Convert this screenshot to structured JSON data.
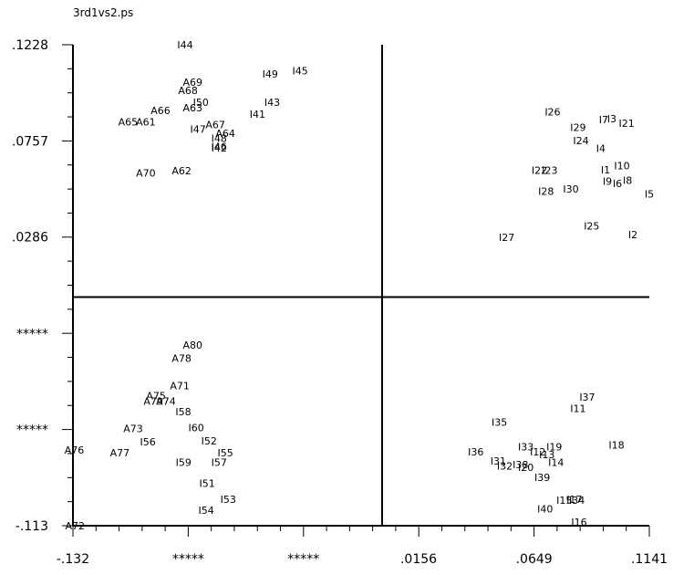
{
  "window": {
    "title": "3rd1vs2.ps"
  },
  "colors": {
    "axis": "#000000",
    "background": "#ffffff",
    "text": "#000000"
  },
  "chart_data": {
    "type": "scatter",
    "title": "3rd1vs2.ps",
    "xlabel": "",
    "ylabel": "",
    "xlim": [
      -0.132,
      0.1141
    ],
    "ylim": [
      -0.113,
      0.1228
    ],
    "grid": false,
    "x_axis_cross": 0.0,
    "y_axis_cross": -0.0009,
    "x_tick_labels": [
      {
        "value": -0.132,
        "label": "-.132"
      },
      {
        "value": -0.0828,
        "label": "*****"
      },
      {
        "value": -0.0336,
        "label": "*****"
      },
      {
        "value": 0.0156,
        "label": ".0156"
      },
      {
        "value": 0.0649,
        "label": ".0649"
      },
      {
        "value": 0.1141,
        "label": ".1141"
      }
    ],
    "y_tick_labels": [
      {
        "value": 0.1228,
        "label": ".1228"
      },
      {
        "value": 0.0757,
        "label": ".0757"
      },
      {
        "value": 0.0286,
        "label": ".0286"
      },
      {
        "value": -0.0188,
        "label": "*****"
      },
      {
        "value": -0.0659,
        "label": "*****"
      },
      {
        "value": -0.113,
        "label": "-.113"
      }
    ],
    "points": [
      {
        "label": "I44",
        "x": -0.0841,
        "y": 0.1228
      },
      {
        "label": "I45",
        "x": -0.035,
        "y": 0.11
      },
      {
        "label": "I49",
        "x": -0.0478,
        "y": 0.1085
      },
      {
        "label": "A69",
        "x": -0.0809,
        "y": 0.1045
      },
      {
        "label": "A68",
        "x": -0.0829,
        "y": 0.1005
      },
      {
        "label": "I50",
        "x": -0.0774,
        "y": 0.0945
      },
      {
        "label": "I43",
        "x": -0.0469,
        "y": 0.0945
      },
      {
        "label": "A66",
        "x": -0.0946,
        "y": 0.0905
      },
      {
        "label": "A63",
        "x": -0.0809,
        "y": 0.092
      },
      {
        "label": "I41",
        "x": -0.0532,
        "y": 0.0888
      },
      {
        "label": "A65",
        "x": -0.1085,
        "y": 0.085
      },
      {
        "label": "A61",
        "x": -0.1009,
        "y": 0.085
      },
      {
        "label": "A67",
        "x": -0.0712,
        "y": 0.0837
      },
      {
        "label": "I47",
        "x": -0.0786,
        "y": 0.0815
      },
      {
        "label": "A64",
        "x": -0.0669,
        "y": 0.0795
      },
      {
        "label": "I48",
        "x": -0.0696,
        "y": 0.077
      },
      {
        "label": "I46",
        "x": -0.0696,
        "y": 0.0728
      },
      {
        "label": "I42",
        "x": -0.0696,
        "y": 0.0723
      },
      {
        "label": "A70",
        "x": -0.1009,
        "y": 0.06
      },
      {
        "label": "A62",
        "x": -0.0856,
        "y": 0.061
      },
      {
        "label": "I26",
        "x": 0.0728,
        "y": 0.09
      },
      {
        "label": "I7",
        "x": 0.0946,
        "y": 0.086
      },
      {
        "label": "I3",
        "x": 0.0981,
        "y": 0.0865
      },
      {
        "label": "I21",
        "x": 0.1044,
        "y": 0.0843
      },
      {
        "label": "I29",
        "x": 0.0837,
        "y": 0.0823
      },
      {
        "label": "I24",
        "x": 0.0849,
        "y": 0.0758
      },
      {
        "label": "I4",
        "x": 0.0934,
        "y": 0.072
      },
      {
        "label": "I22",
        "x": 0.0672,
        "y": 0.0613
      },
      {
        "label": "I23",
        "x": 0.0716,
        "y": 0.0613
      },
      {
        "label": "I1",
        "x": 0.0954,
        "y": 0.0615
      },
      {
        "label": "I10",
        "x": 0.1024,
        "y": 0.0635
      },
      {
        "label": "I9",
        "x": 0.0962,
        "y": 0.056
      },
      {
        "label": "I6",
        "x": 0.1005,
        "y": 0.0548
      },
      {
        "label": "I8",
        "x": 0.1048,
        "y": 0.0563
      },
      {
        "label": "I30",
        "x": 0.0806,
        "y": 0.052
      },
      {
        "label": "I28",
        "x": 0.07,
        "y": 0.051
      },
      {
        "label": "I5",
        "x": 0.1141,
        "y": 0.0497
      },
      {
        "label": "I25",
        "x": 0.0895,
        "y": 0.034
      },
      {
        "label": "I27",
        "x": 0.0532,
        "y": 0.0283
      },
      {
        "label": "I2",
        "x": 0.1071,
        "y": 0.0297
      },
      {
        "label": "A80",
        "x": -0.0809,
        "y": -0.0243
      },
      {
        "label": "A78",
        "x": -0.0856,
        "y": -0.031
      },
      {
        "label": "A71",
        "x": -0.0864,
        "y": -0.0443
      },
      {
        "label": "A75",
        "x": -0.0965,
        "y": -0.0493
      },
      {
        "label": "A79",
        "x": -0.0977,
        "y": -0.052
      },
      {
        "label": "A74",
        "x": -0.0923,
        "y": -0.052
      },
      {
        "label": "I58",
        "x": -0.0849,
        "y": -0.057
      },
      {
        "label": "A73",
        "x": -0.1063,
        "y": -0.0653
      },
      {
        "label": "I60",
        "x": -0.0794,
        "y": -0.065
      },
      {
        "label": "I56",
        "x": -0.1,
        "y": -0.0718
      },
      {
        "label": "I52",
        "x": -0.0739,
        "y": -0.0713
      },
      {
        "label": "A76",
        "x": -0.1314,
        "y": -0.0758
      },
      {
        "label": "A77",
        "x": -0.112,
        "y": -0.0773
      },
      {
        "label": "I55",
        "x": -0.0669,
        "y": -0.0773
      },
      {
        "label": "I59",
        "x": -0.0848,
        "y": -0.0818
      },
      {
        "label": "I57",
        "x": -0.0696,
        "y": -0.0818
      },
      {
        "label": "I51",
        "x": -0.0747,
        "y": -0.0923
      },
      {
        "label": "I53",
        "x": -0.0657,
        "y": -0.1
      },
      {
        "label": "I54",
        "x": -0.0751,
        "y": -0.1053
      },
      {
        "label": "A72",
        "x": -0.1311,
        "y": -0.113
      },
      {
        "label": "I37",
        "x": 0.0876,
        "y": -0.0498
      },
      {
        "label": "I11",
        "x": 0.0837,
        "y": -0.0555
      },
      {
        "label": "I35",
        "x": 0.0501,
        "y": -0.0623
      },
      {
        "label": "I18",
        "x": 0.1001,
        "y": -0.0733
      },
      {
        "label": "I33",
        "x": 0.0614,
        "y": -0.0743
      },
      {
        "label": "I19",
        "x": 0.0735,
        "y": -0.0743
      },
      {
        "label": "I36",
        "x": 0.04,
        "y": -0.0768
      },
      {
        "label": "I12",
        "x": 0.0665,
        "y": -0.0768
      },
      {
        "label": "I13",
        "x": 0.0704,
        "y": -0.078
      },
      {
        "label": "I31",
        "x": 0.0496,
        "y": -0.0813
      },
      {
        "label": "I14",
        "x": 0.0743,
        "y": -0.0818
      },
      {
        "label": "I32",
        "x": 0.0524,
        "y": -0.0838
      },
      {
        "label": "I38",
        "x": 0.0591,
        "y": -0.083
      },
      {
        "label": "I20",
        "x": 0.0614,
        "y": -0.0843
      },
      {
        "label": "I39",
        "x": 0.0684,
        "y": -0.0893
      },
      {
        "label": "I15",
        "x": 0.0778,
        "y": -0.1005
      },
      {
        "label": "I17",
        "x": 0.0821,
        "y": -0.1
      },
      {
        "label": "I34",
        "x": 0.0832,
        "y": -0.1005
      },
      {
        "label": "I40",
        "x": 0.0696,
        "y": -0.1048
      },
      {
        "label": "I16",
        "x": 0.0841,
        "y": -0.1113
      }
    ]
  }
}
